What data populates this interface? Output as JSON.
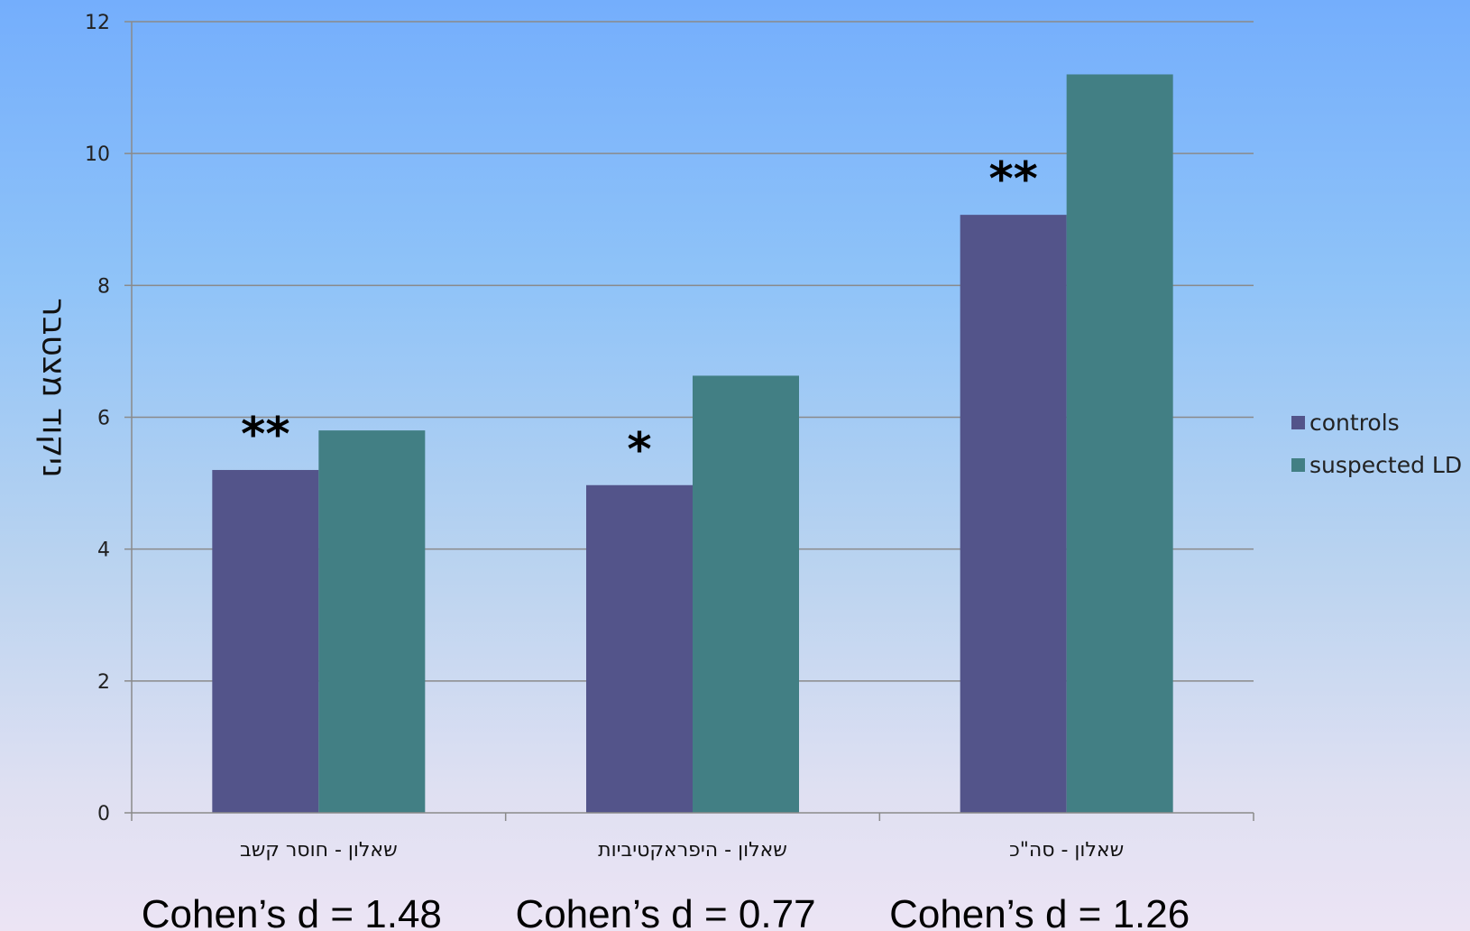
{
  "chart_data": {
    "type": "bar",
    "categories": [
      "שאלון - חוסר קשב",
      "שאלון - היפראקטיביות",
      "שאלון - סה\"כ"
    ],
    "series": [
      {
        "name": "controls",
        "values": [
          5.2,
          4.97,
          9.07
        ],
        "color": "#53548a"
      },
      {
        "name": "suspected LD",
        "values": [
          5.8,
          6.63,
          11.2
        ],
        "color": "#427f84"
      }
    ],
    "ylabel": "ניקוד מצטבר",
    "xlabel": "",
    "ylim": [
      0,
      12
    ],
    "yticks": [
      "0",
      "2",
      "4",
      "6",
      "8",
      "10",
      "12"
    ],
    "grid": true,
    "legend": "right",
    "significance": [
      "**",
      "*",
      "**"
    ],
    "effect_sizes": [
      "Cohen’s d = 1.48",
      "Cohen’s d = 0.77",
      "Cohen’s d = 1.26"
    ]
  }
}
